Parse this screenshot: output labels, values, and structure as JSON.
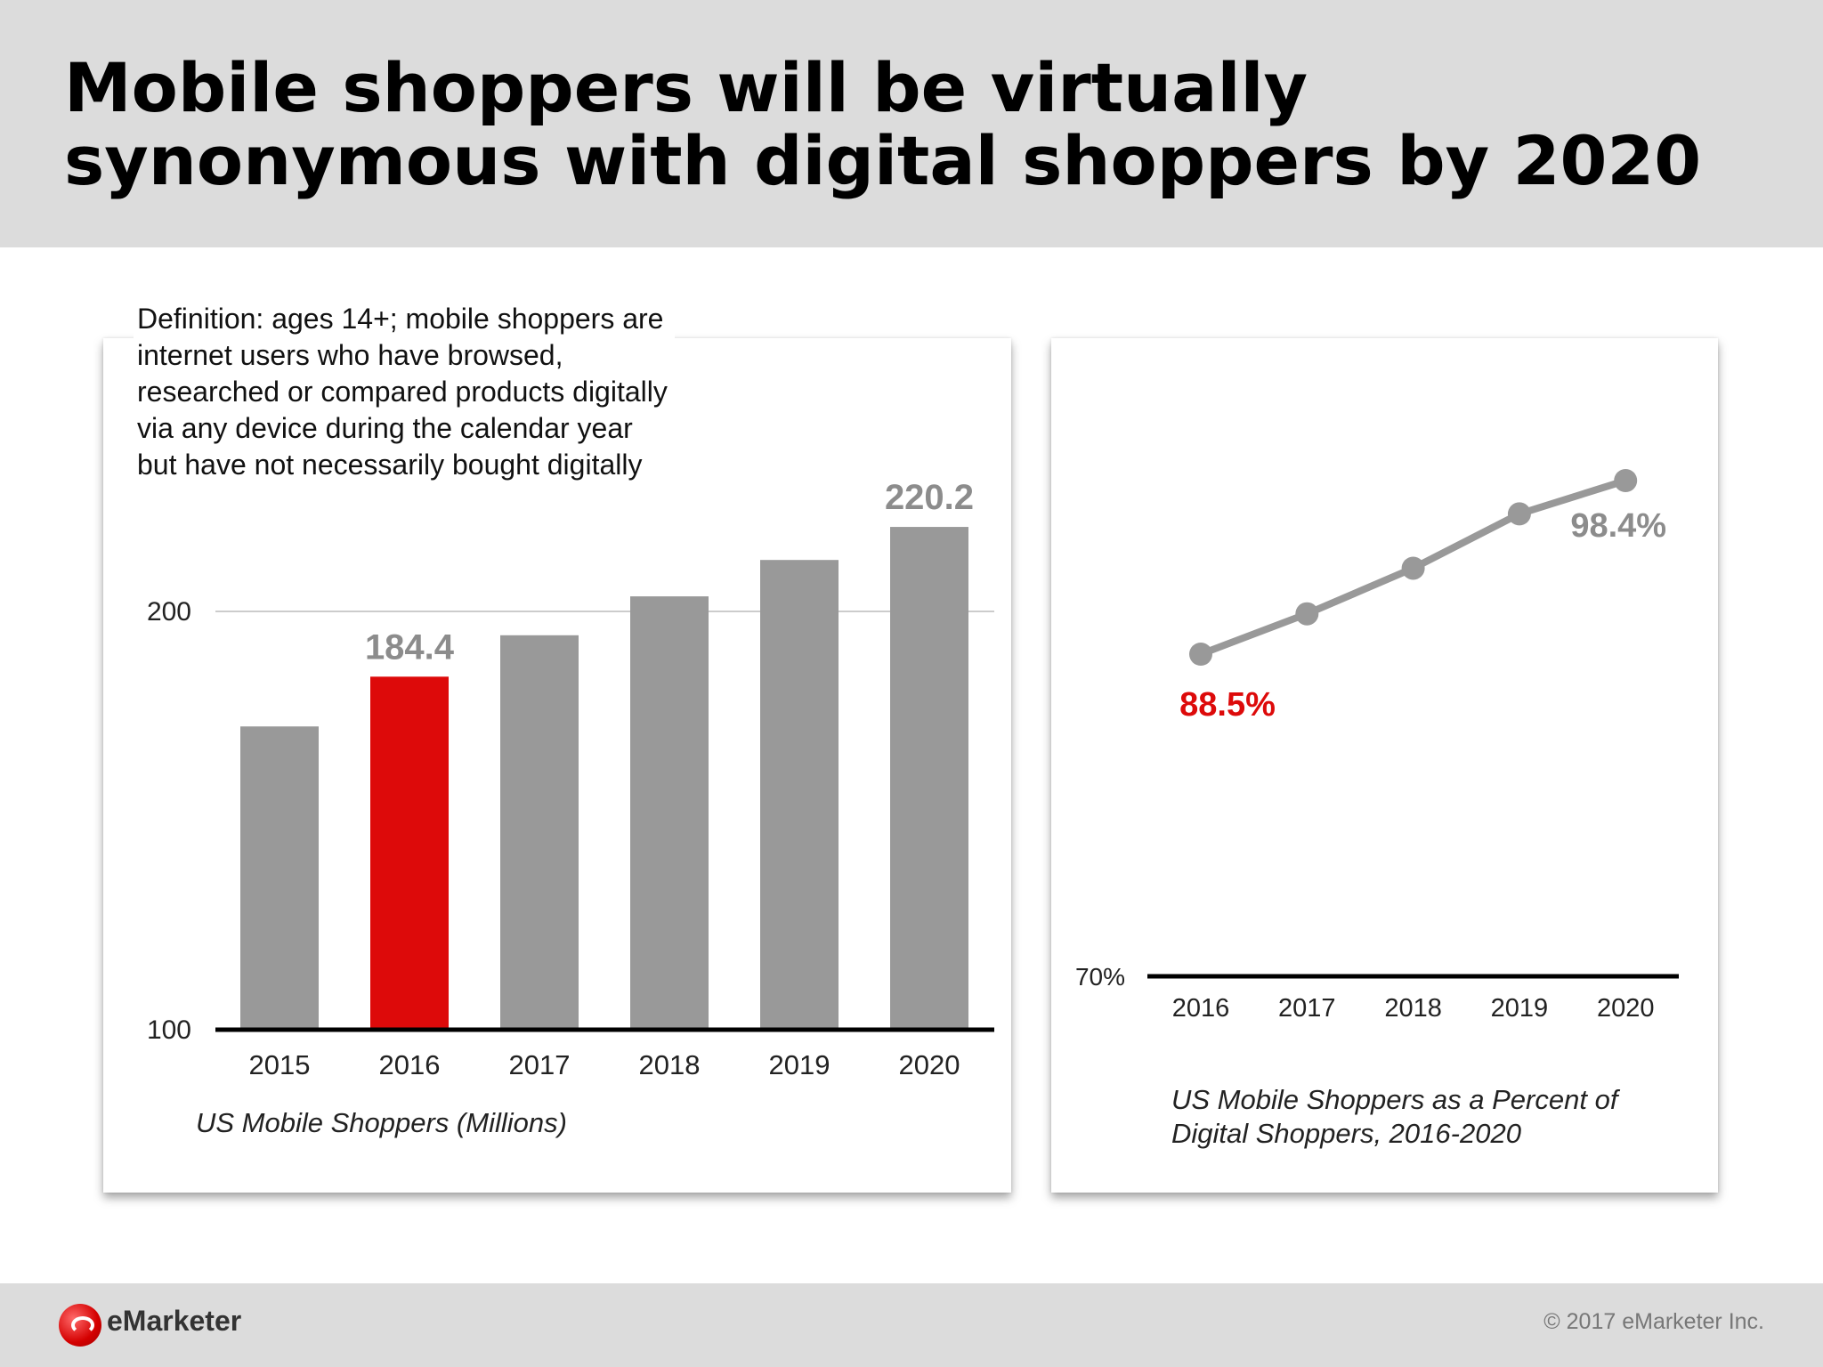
{
  "header": {
    "title": "Mobile shoppers will be virtually\nsynonymous with digital shoppers by 2020"
  },
  "definition": "Definition: ages 14+; mobile shoppers are internet users who have browsed, researched or compared products digitally via any device during the calendar year but have not necessarily bought digitally",
  "footer": {
    "logo_text": "eMarketer",
    "copyright": "© 2017 eMarketer Inc."
  },
  "colors": {
    "bar": "#999999",
    "highlight": "#dd0a0a",
    "line": "#999999",
    "axis": "#000000",
    "grid": "#cccccc",
    "label_gray": "#8c8c8c"
  },
  "chart_data": [
    {
      "type": "bar",
      "title": "US Mobile Shoppers (Millions)",
      "categories": [
        "2015",
        "2016",
        "2017",
        "2018",
        "2019",
        "2020"
      ],
      "values": [
        172.5,
        184.4,
        194.3,
        203.6,
        212.3,
        220.2
      ],
      "highlight_index": 1,
      "data_labels": [
        {
          "index": 1,
          "text": "184.4"
        },
        {
          "index": 5,
          "text": "220.2"
        }
      ],
      "ylim": [
        100,
        230
      ],
      "yticks": [
        100,
        200
      ],
      "ytick_labels": [
        "100",
        "200"
      ],
      "grid": true,
      "xlabel": "",
      "ylabel": ""
    },
    {
      "type": "line",
      "title": "US Mobile Shoppers as a Percent of\nDigital Shoppers, 2016-2020",
      "x": [
        "2016",
        "2017",
        "2018",
        "2019",
        "2020"
      ],
      "values": [
        88.5,
        90.8,
        93.4,
        96.5,
        98.4
      ],
      "data_labels": [
        {
          "index": 0,
          "text": "88.5%",
          "color": "highlight"
        },
        {
          "index": 4,
          "text": "98.4%",
          "color": "label_gray"
        }
      ],
      "ylim": [
        70,
        100
      ],
      "yticks": [
        70
      ],
      "ytick_labels": [
        "70%"
      ],
      "grid": false,
      "xlabel": "",
      "ylabel": ""
    }
  ]
}
